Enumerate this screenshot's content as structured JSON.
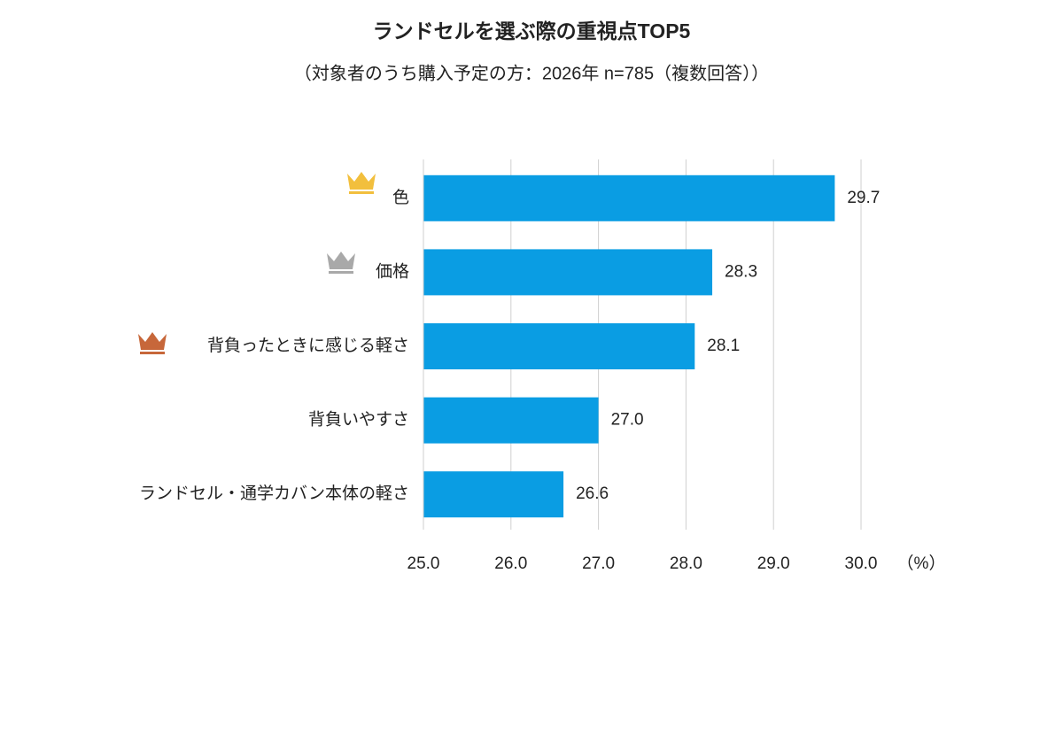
{
  "chart_data": {
    "type": "bar",
    "orientation": "horizontal",
    "title": "ランドセルを選ぶ際の重視点TOP5",
    "subtitle": "（対象者のうち購入予定の方：2026年 n=785（複数回答））",
    "categories": [
      "色",
      "価格",
      "背負ったときに感じる軽さ",
      "背負いやすさ",
      "ランドセル・通学カバン本体の軽さ"
    ],
    "values": [
      29.7,
      28.3,
      28.1,
      27.0,
      26.6
    ],
    "value_labels": [
      "29.7",
      "28.3",
      "28.1",
      "27.0",
      "26.6"
    ],
    "color": "#0a9de3",
    "xlim": [
      25,
      30
    ],
    "xticks": [
      {
        "value": 25,
        "label": "25.0"
      },
      {
        "value": 26,
        "label": "26.0"
      },
      {
        "value": 27,
        "label": "27.0"
      },
      {
        "value": 28,
        "label": "28.0"
      },
      {
        "value": 29,
        "label": "29.0"
      },
      {
        "value": 30,
        "label": "30.0"
      }
    ],
    "x_unit_label": "（%）",
    "grid": true
  }
}
